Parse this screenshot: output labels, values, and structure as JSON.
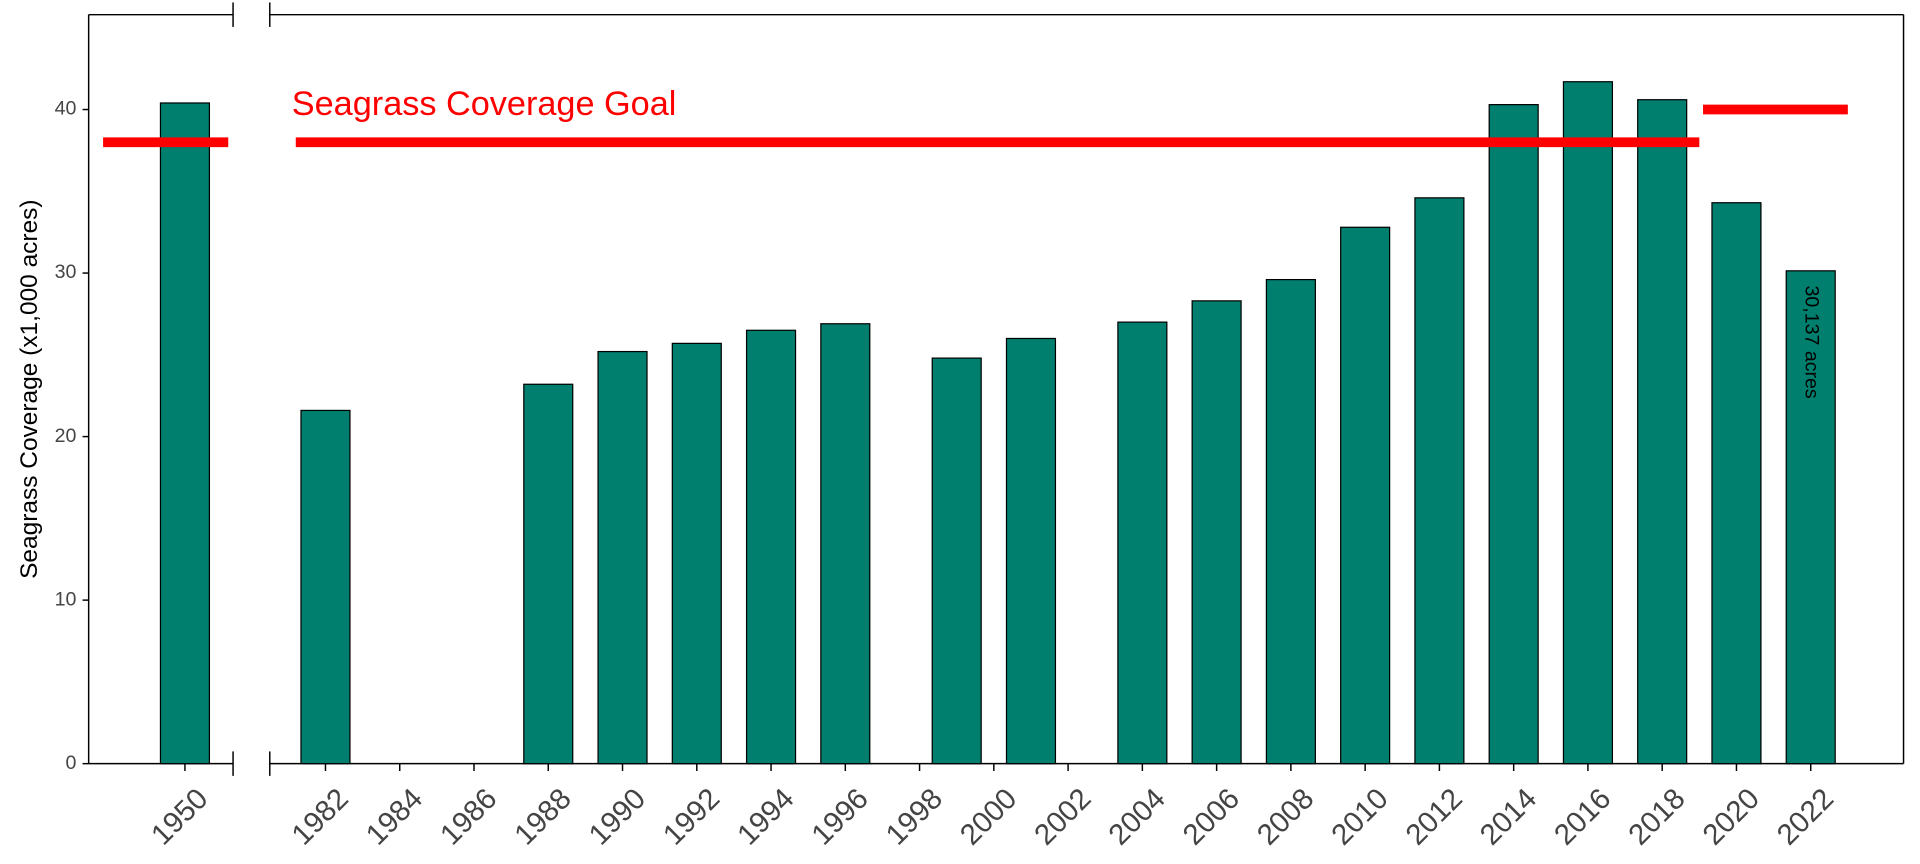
{
  "chart_data": [
    {
      "type": "bar",
      "ylabel": "Seagrass Coverage (x1,000 acres)",
      "x": [
        1950
      ],
      "values": [
        40.4
      ],
      "color": "#007f6e",
      "xlim": [
        1948,
        1951
      ],
      "xticks": [
        1950
      ],
      "ylim": [
        0,
        45.8
      ],
      "yticks": [
        0,
        10,
        20,
        30,
        40
      ],
      "goals": [
        {
          "value": 38,
          "x": [
            1948.3,
            1950.9
          ]
        }
      ],
      "goal_color": "#ff0000"
    },
    {
      "type": "bar",
      "annotation": "Seagrass Coverage Goal",
      "x": [
        1982,
        1988,
        1990,
        1992,
        1994,
        1996,
        1999,
        2001,
        2004,
        2006,
        2008,
        2010,
        2012,
        2014,
        2016,
        2018,
        2020,
        2022
      ],
      "values": [
        21.6,
        23.2,
        25.2,
        25.7,
        26.5,
        26.9,
        24.8,
        26.0,
        27.0,
        28.3,
        29.6,
        32.8,
        34.6,
        40.3,
        41.7,
        40.6,
        34.3,
        30.137
      ],
      "value_labels": [
        null,
        null,
        null,
        null,
        null,
        null,
        null,
        null,
        null,
        null,
        null,
        null,
        null,
        null,
        null,
        null,
        null,
        "30,137 acres"
      ],
      "color": "#007f6e",
      "xlim": [
        1980.5,
        2024.5
      ],
      "xticks": [
        1982,
        1984,
        1986,
        1988,
        1990,
        1992,
        1994,
        1996,
        1998,
        2000,
        2002,
        2004,
        2006,
        2008,
        2010,
        2012,
        2014,
        2016,
        2018,
        2020,
        2022
      ],
      "ylim": [
        0,
        45.8
      ],
      "goals": [
        {
          "value": 38,
          "x": [
            1981.2,
            2019
          ]
        },
        {
          "value": 40,
          "x": [
            2019.1,
            2023
          ]
        }
      ],
      "goal_color": "#ff0000"
    }
  ]
}
